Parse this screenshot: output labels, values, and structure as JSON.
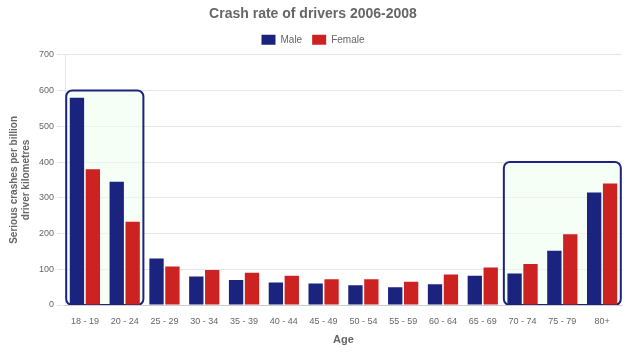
{
  "chart_data": {
    "type": "bar",
    "title": "Crash rate of drivers 2006-2008",
    "xlabel": "Age",
    "ylabel": "Serious crashes per billion\ndriver kilometres",
    "categories": [
      "18 - 19",
      "20 - 24",
      "25 - 29",
      "30 - 34",
      "35 - 39",
      "40 - 44",
      "45 - 49",
      "50 - 54",
      "55 - 59",
      "60 - 64",
      "65 - 69",
      "70 - 74",
      "75 - 79",
      "80+"
    ],
    "series": [
      {
        "name": "Male",
        "color": "#1a237e",
        "values": [
          580,
          345,
          130,
          80,
          70,
          63,
          60,
          55,
          50,
          58,
          82,
          88,
          152,
          315
        ]
      },
      {
        "name": "Female",
        "color": "#cc2222",
        "values": [
          380,
          233,
          108,
          98,
          90,
          82,
          72,
          72,
          65,
          85,
          105,
          115,
          198,
          340
        ]
      }
    ],
    "highlight_boxes": [
      {
        "start": "18 - 19",
        "end": "20 - 24",
        "height": 600,
        "color": "#1a237e"
      },
      {
        "start": "70 - 74",
        "end": "80+",
        "height": 400,
        "color": "#1a237e"
      }
    ],
    "ylim": [
      0,
      700
    ],
    "yticks": [
      0,
      100,
      200,
      300,
      400,
      500,
      600,
      700
    ],
    "grid": true,
    "legend": "top"
  }
}
